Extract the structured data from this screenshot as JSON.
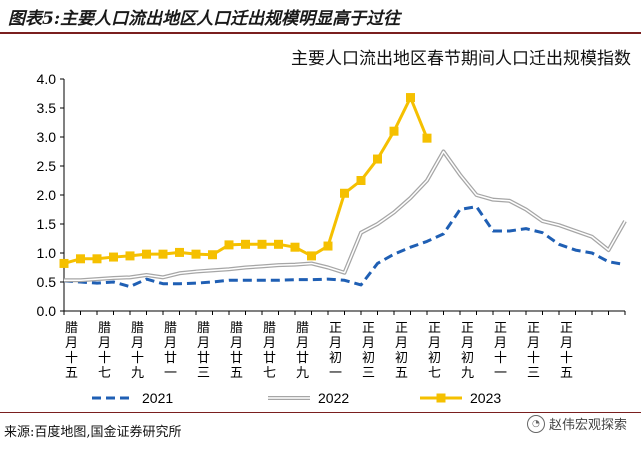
{
  "figure_title": "图表5:主要人口流出地区人口迁出规模明显高于过往",
  "source_text": "来源:百度地图,国金证券研究所",
  "watermark": "赵伟宏观探索",
  "colors": {
    "s2021": "#1f5fb4",
    "s2022": "#a6a6a6",
    "s2023": "#f5c000",
    "rule": "#7a1f1f"
  },
  "chart_data": {
    "type": "line",
    "title": "主要人口流出地区春节期间人口迁出规模指数",
    "ylim": [
      0,
      4.0
    ],
    "yticks": [
      "0.0",
      "0.5",
      "1.0",
      "1.5",
      "2.0",
      "2.5",
      "3.0",
      "3.5",
      "4.0"
    ],
    "xtick_labels": [
      "腊月十五",
      "腊月十七",
      "腊月十九",
      "腊月廿一",
      "腊月廿三",
      "腊月廿五",
      "腊月廿七",
      "腊月廿九",
      "正月初一",
      "正月初三",
      "正月初五",
      "正月初七",
      "正月初九",
      "正月十一",
      "正月十三",
      "正月十五"
    ],
    "legend_position": "bottom",
    "series": [
      {
        "name": "2021",
        "style": "dashed",
        "color": "#1f5fb4",
        "values": [
          0.52,
          0.5,
          0.48,
          0.5,
          0.42,
          0.55,
          0.47,
          0.47,
          0.48,
          0.5,
          0.53,
          0.53,
          0.53,
          0.53,
          0.54,
          0.54,
          0.55,
          0.53,
          0.45,
          0.82,
          0.98,
          1.1,
          1.2,
          1.33,
          1.75,
          1.8,
          1.38,
          1.38,
          1.42,
          1.35,
          1.15,
          1.05,
          1.0,
          0.85,
          0.8
        ]
      },
      {
        "name": "2022",
        "style": "double",
        "color": "#a6a6a6",
        "values": [
          0.53,
          0.53,
          0.55,
          0.57,
          0.58,
          0.62,
          0.58,
          0.65,
          0.68,
          0.7,
          0.72,
          0.75,
          0.77,
          0.79,
          0.8,
          0.82,
          0.75,
          0.66,
          1.35,
          1.5,
          1.7,
          1.95,
          2.25,
          2.75,
          2.35,
          2.0,
          1.92,
          1.9,
          1.75,
          1.55,
          1.48,
          1.38,
          1.28,
          1.05,
          1.55
        ]
      },
      {
        "name": "2023",
        "style": "solid-square",
        "color": "#f5c000",
        "values": [
          0.82,
          0.9,
          0.9,
          0.93,
          0.95,
          0.98,
          0.98,
          1.01,
          0.98,
          0.97,
          1.14,
          1.15,
          1.15,
          1.15,
          1.1,
          0.95,
          1.12,
          2.03,
          2.25,
          2.62,
          3.1,
          3.68,
          2.98
        ]
      }
    ]
  }
}
